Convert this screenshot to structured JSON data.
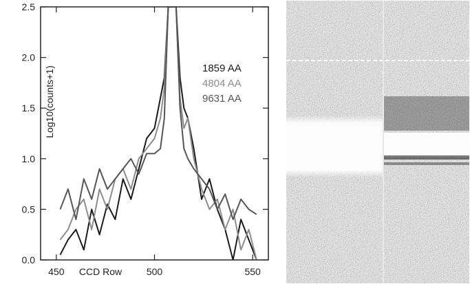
{
  "chart_data": {
    "type": "line",
    "xlabel": "CCD Row",
    "ylabel": "Log10(counts+1)",
    "xlim": [
      442,
      558
    ],
    "ylim": [
      0.0,
      2.5
    ],
    "x_ticks": [
      450,
      500,
      550
    ],
    "y_ticks": [
      0.0,
      0.5,
      1.0,
      1.5,
      2.0,
      2.5
    ],
    "y_tick_labels": [
      "0.0",
      "0.5",
      "1.0",
      "1.5",
      "2.0",
      "2.5"
    ],
    "grid": false,
    "legend_position": "right",
    "series": [
      {
        "name": "1859 AA",
        "color": "#1a1a1a",
        "x": [
          452,
          456,
          460,
          464,
          468,
          472,
          476,
          480,
          484,
          488,
          492,
          496,
          500,
          503,
          505,
          507,
          508,
          510,
          511,
          513,
          515,
          517,
          520,
          524,
          528,
          532,
          536,
          540,
          544,
          548,
          552
        ],
        "y": [
          0.05,
          0.2,
          0.3,
          0.1,
          0.5,
          0.25,
          0.55,
          0.4,
          0.8,
          0.6,
          0.9,
          1.2,
          1.3,
          1.6,
          1.8,
          2.5,
          2.5,
          2.5,
          2.5,
          1.8,
          1.5,
          1.4,
          1.1,
          0.6,
          0.8,
          0.5,
          0.3,
          0.0,
          0.4,
          0.2,
          0.0
        ]
      },
      {
        "name": "4804 AA",
        "color": "#8c8c8c",
        "x": [
          452,
          456,
          460,
          464,
          468,
          472,
          476,
          480,
          484,
          488,
          492,
          496,
          500,
          503,
          505,
          507,
          508,
          510,
          511,
          513,
          515,
          517,
          520,
          524,
          528,
          532,
          536,
          540,
          544,
          548,
          552
        ],
        "y": [
          0.2,
          0.3,
          0.5,
          0.6,
          0.3,
          0.7,
          0.5,
          0.8,
          0.9,
          0.7,
          1.0,
          1.1,
          1.2,
          1.4,
          1.7,
          2.5,
          2.5,
          2.5,
          2.5,
          1.6,
          1.3,
          1.4,
          1.0,
          0.7,
          0.5,
          0.6,
          0.3,
          0.5,
          0.1,
          0.3,
          0.0
        ]
      },
      {
        "name": "9631 AA",
        "color": "#555555",
        "x": [
          452,
          456,
          460,
          464,
          468,
          472,
          476,
          480,
          484,
          488,
          492,
          496,
          500,
          503,
          505,
          507,
          508,
          510,
          511,
          513,
          515,
          517,
          520,
          524,
          528,
          532,
          536,
          540,
          544,
          548,
          552
        ],
        "y": [
          0.5,
          0.7,
          0.4,
          0.8,
          0.6,
          0.9,
          0.7,
          0.8,
          0.9,
          1.0,
          0.85,
          1.05,
          1.05,
          1.1,
          1.4,
          2.5,
          2.5,
          2.5,
          2.5,
          1.5,
          1.1,
          1.0,
          0.9,
          0.8,
          0.7,
          0.5,
          0.65,
          0.4,
          0.6,
          0.5,
          0.45
        ]
      }
    ]
  },
  "image_panel": {
    "type": "noise-image",
    "description_colors": {
      "dark": "#2a2a2a",
      "light": "#f4f4f4"
    }
  }
}
